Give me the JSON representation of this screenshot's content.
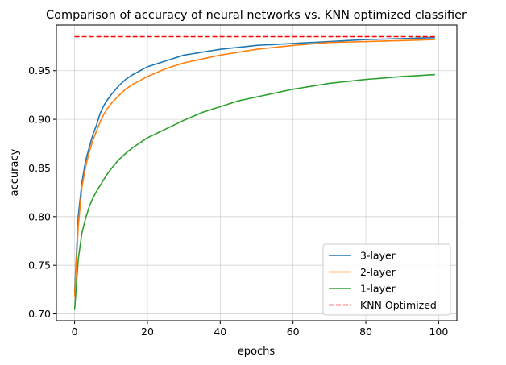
{
  "chart_data": {
    "type": "line",
    "title": "Comparison of accuracy of neural networks vs. KNN optimized classifier",
    "xlabel": "epochs",
    "ylabel": "accuracy",
    "xlim": [
      -5,
      105
    ],
    "ylim": [
      0.693,
      0.997
    ],
    "xticks": [
      0,
      20,
      40,
      60,
      80,
      100
    ],
    "yticks": [
      0.7,
      0.75,
      0.8,
      0.85,
      0.9,
      0.95
    ],
    "ytick_labels": [
      "0.70",
      "0.75",
      "0.80",
      "0.85",
      "0.90",
      "0.95"
    ],
    "grid": true,
    "legend_position": "bottom-right",
    "series": [
      {
        "name": "3-layer",
        "color": "#1f77b4",
        "dash": "solid",
        "anchors": [
          [
            0,
            0.722
          ],
          [
            1,
            0.8
          ],
          [
            2,
            0.835
          ],
          [
            3,
            0.857
          ],
          [
            4,
            0.871
          ],
          [
            5,
            0.884
          ],
          [
            6,
            0.894
          ],
          [
            7,
            0.906
          ],
          [
            8,
            0.914
          ],
          [
            9,
            0.92
          ],
          [
            10,
            0.925
          ],
          [
            12,
            0.934
          ],
          [
            14,
            0.941
          ],
          [
            16,
            0.946
          ],
          [
            18,
            0.95
          ],
          [
            20,
            0.954
          ],
          [
            25,
            0.96
          ],
          [
            30,
            0.966
          ],
          [
            35,
            0.969
          ],
          [
            40,
            0.972
          ],
          [
            50,
            0.976
          ],
          [
            60,
            0.978
          ],
          [
            70,
            0.98
          ],
          [
            80,
            0.982
          ],
          [
            90,
            0.983
          ],
          [
            99,
            0.984
          ]
        ]
      },
      {
        "name": "2-layer",
        "color": "#ff7f0e",
        "dash": "solid",
        "anchors": [
          [
            0,
            0.718
          ],
          [
            1,
            0.79
          ],
          [
            2,
            0.83
          ],
          [
            3,
            0.851
          ],
          [
            4,
            0.866
          ],
          [
            5,
            0.878
          ],
          [
            6,
            0.888
          ],
          [
            7,
            0.897
          ],
          [
            8,
            0.905
          ],
          [
            9,
            0.911
          ],
          [
            10,
            0.916
          ],
          [
            12,
            0.924
          ],
          [
            14,
            0.931
          ],
          [
            16,
            0.936
          ],
          [
            18,
            0.94
          ],
          [
            20,
            0.944
          ],
          [
            25,
            0.952
          ],
          [
            30,
            0.958
          ],
          [
            35,
            0.962
          ],
          [
            40,
            0.966
          ],
          [
            50,
            0.972
          ],
          [
            60,
            0.976
          ],
          [
            70,
            0.979
          ],
          [
            80,
            0.98
          ],
          [
            90,
            0.981
          ],
          [
            99,
            0.982
          ]
        ]
      },
      {
        "name": "1-layer",
        "color": "#2ca02c",
        "dash": "solid",
        "anchors": [
          [
            0,
            0.704
          ],
          [
            1,
            0.756
          ],
          [
            2,
            0.783
          ],
          [
            3,
            0.798
          ],
          [
            4,
            0.81
          ],
          [
            5,
            0.819
          ],
          [
            6,
            0.826
          ],
          [
            7,
            0.832
          ],
          [
            8,
            0.838
          ],
          [
            9,
            0.844
          ],
          [
            10,
            0.849
          ],
          [
            12,
            0.858
          ],
          [
            14,
            0.865
          ],
          [
            16,
            0.871
          ],
          [
            18,
            0.876
          ],
          [
            20,
            0.881
          ],
          [
            25,
            0.89
          ],
          [
            30,
            0.899
          ],
          [
            35,
            0.907
          ],
          [
            40,
            0.913
          ],
          [
            45,
            0.919
          ],
          [
            50,
            0.923
          ],
          [
            55,
            0.927
          ],
          [
            60,
            0.931
          ],
          [
            70,
            0.937
          ],
          [
            80,
            0.941
          ],
          [
            90,
            0.944
          ],
          [
            99,
            0.946
          ]
        ]
      },
      {
        "name": "KNN Optimized",
        "color": "#ff0000",
        "dash": "dashed",
        "anchors": [
          [
            0,
            0.985
          ],
          [
            99,
            0.985
          ]
        ]
      }
    ]
  }
}
